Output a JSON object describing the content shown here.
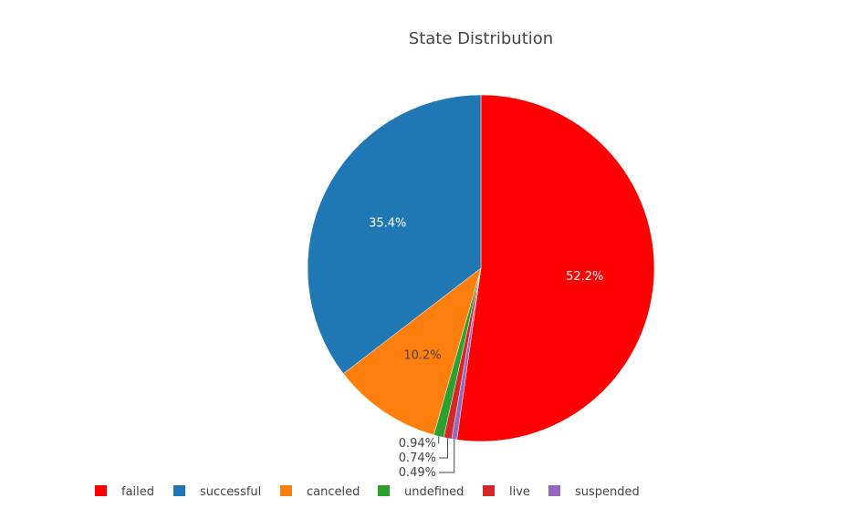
{
  "chart_data": {
    "type": "pie",
    "title": "State Distribution",
    "slices": [
      {
        "name": "failed",
        "label": "52.2%",
        "value": 52.2,
        "color": "#ff0000"
      },
      {
        "name": "suspended",
        "label": "0.49%",
        "value": 0.49,
        "color": "#9467bd"
      },
      {
        "name": "live",
        "label": "0.74%",
        "value": 0.74,
        "color": "#d62728"
      },
      {
        "name": "undefined",
        "label": "0.94%",
        "value": 0.94,
        "color": "#2ca02c"
      },
      {
        "name": "canceled",
        "label": "10.2%",
        "value": 10.2,
        "color": "#ff7f0e"
      },
      {
        "name": "successful",
        "label": "35.4%",
        "value": 35.4,
        "color": "#1f77b4"
      }
    ],
    "legend": [
      {
        "name": "failed",
        "color": "#ff0000"
      },
      {
        "name": "successful",
        "color": "#1f77b4"
      },
      {
        "name": "canceled",
        "color": "#ff7f0e"
      },
      {
        "name": "undefined",
        "color": "#2ca02c"
      },
      {
        "name": "live",
        "color": "#d62728"
      },
      {
        "name": "suspended",
        "color": "#9467bd"
      }
    ],
    "legend_position": "bottom",
    "start": "top",
    "direction": "clockwise"
  }
}
